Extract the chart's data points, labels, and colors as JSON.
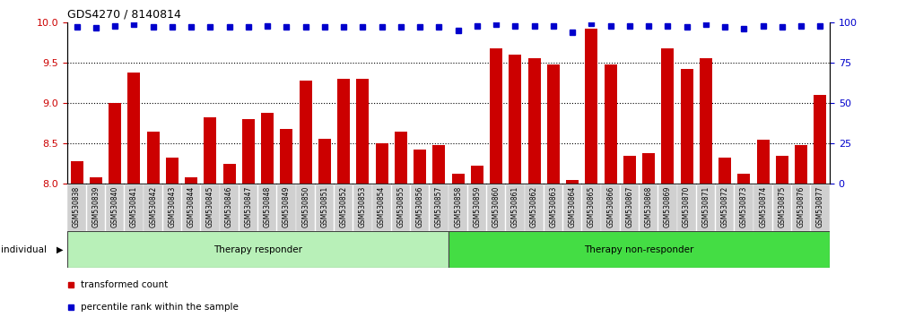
{
  "title": "GDS4270 / 8140814",
  "samples": [
    "GSM530838",
    "GSM530839",
    "GSM530840",
    "GSM530841",
    "GSM530842",
    "GSM530843",
    "GSM530844",
    "GSM530845",
    "GSM530846",
    "GSM530847",
    "GSM530848",
    "GSM530849",
    "GSM530850",
    "GSM530851",
    "GSM530852",
    "GSM530853",
    "GSM530854",
    "GSM530855",
    "GSM530856",
    "GSM530857",
    "GSM530858",
    "GSM530859",
    "GSM530860",
    "GSM530861",
    "GSM530862",
    "GSM530863",
    "GSM530864",
    "GSM530865",
    "GSM530866",
    "GSM530867",
    "GSM530868",
    "GSM530869",
    "GSM530870",
    "GSM530871",
    "GSM530872",
    "GSM530873",
    "GSM530874",
    "GSM530875",
    "GSM530876",
    "GSM530877"
  ],
  "bar_values": [
    8.28,
    8.08,
    9.0,
    9.38,
    8.65,
    8.32,
    8.08,
    8.82,
    8.25,
    8.8,
    8.88,
    8.68,
    9.28,
    8.56,
    9.3,
    9.3,
    8.5,
    8.65,
    8.42,
    8.48,
    8.12,
    8.22,
    9.68,
    9.6,
    9.55,
    9.48,
    8.05,
    9.92,
    9.48,
    8.35,
    8.38,
    9.68,
    9.42,
    9.55,
    8.32,
    8.12,
    8.55,
    8.35,
    8.48,
    9.1
  ],
  "dot_values": [
    97,
    96.5,
    97.5,
    98.5,
    97.2,
    97,
    97,
    97,
    97,
    97,
    97.5,
    97,
    97.2,
    97,
    97,
    97.2,
    97,
    97,
    97,
    97,
    95,
    97.5,
    98.5,
    97.5,
    97.5,
    97.5,
    94,
    99.5,
    97.5,
    97.5,
    97.5,
    97.5,
    97,
    98.5,
    97,
    96,
    97.5,
    97.2,
    97.5,
    97.5
  ],
  "therapy_responder_count": 20,
  "ylim_left": [
    8.0,
    10.0
  ],
  "ylim_right": [
    0,
    100
  ],
  "yticks_left": [
    8.0,
    8.5,
    9.0,
    9.5,
    10.0
  ],
  "yticks_right": [
    0,
    25,
    50,
    75,
    100
  ],
  "grid_lines": [
    8.5,
    9.0,
    9.5
  ],
  "bar_color": "#cc0000",
  "dot_color": "#0000cc",
  "responder_color": "#b8f0b8",
  "non_responder_color": "#44dd44",
  "label_area_color": "#d0d0d0",
  "background_color": "#ffffff"
}
